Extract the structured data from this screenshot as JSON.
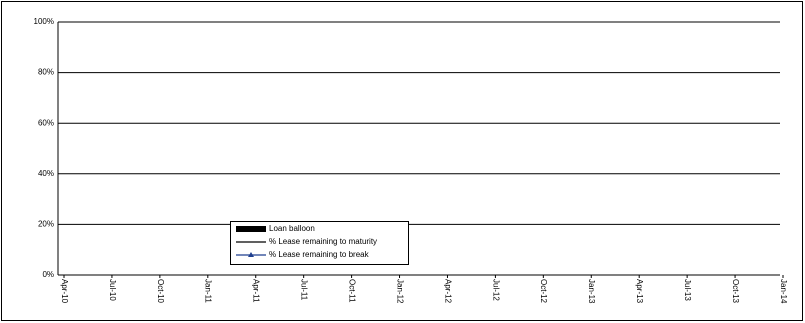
{
  "chart_data": {
    "type": "combo",
    "categories": [
      "Apr-10",
      "Jul-10",
      "Oct-10",
      "Jan-11",
      "Apr-11",
      "Jul-11",
      "Oct-11",
      "Jan-12",
      "Apr-12",
      "Jul-12",
      "Oct-12",
      "Jan-13",
      "Apr-13",
      "Jul-13",
      "Oct-13",
      "Jan-14"
    ],
    "series": [
      {
        "name": "Loan balloon",
        "type": "bar",
        "color": "#000000",
        "values": [
          null,
          null,
          null,
          null,
          null,
          null,
          null,
          null,
          null,
          null,
          null,
          null,
          null,
          null,
          null,
          null
        ]
      },
      {
        "name": "% Lease remaining to maturity",
        "type": "line",
        "color": "#000000",
        "values": [
          null,
          null,
          null,
          null,
          null,
          null,
          null,
          null,
          null,
          null,
          null,
          null,
          null,
          null,
          null,
          null
        ]
      },
      {
        "name": "% Lease remaining to break",
        "type": "line",
        "marker": "triangle",
        "color": "#1f3f8f",
        "values": [
          null,
          null,
          null,
          null,
          null,
          null,
          null,
          null,
          null,
          null,
          null,
          null,
          null,
          null,
          null,
          null
        ]
      }
    ],
    "ylim": [
      0,
      100
    ],
    "yticks": [
      {
        "value": 0,
        "label": "0%"
      },
      {
        "value": 20,
        "label": "20%"
      },
      {
        "value": 40,
        "label": "40%"
      },
      {
        "value": 60,
        "label": "60%"
      },
      {
        "value": 80,
        "label": "80%"
      },
      {
        "value": 100,
        "label": "100%"
      }
    ],
    "grid": true
  }
}
